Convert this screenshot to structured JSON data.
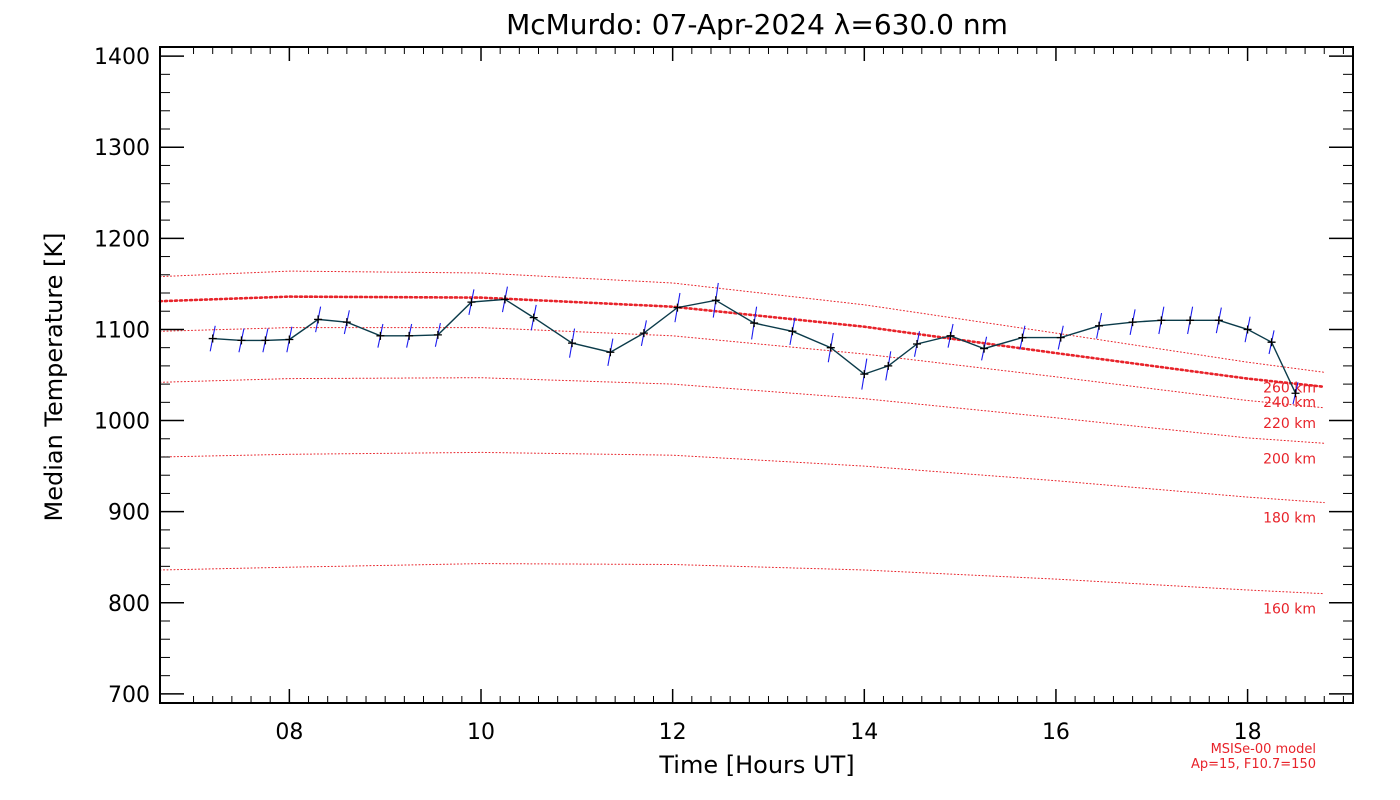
{
  "chart_data": {
    "type": "line",
    "title": "McMurdo: 07-Apr-2024 λ=630.0 nm",
    "xlabel": "Time [Hours UT]",
    "ylabel": "Median Temperature [K]",
    "xlim": [
      6.65,
      19.1
    ],
    "ylim": [
      690,
      1410
    ],
    "x_ticks": [
      "08",
      "10",
      "12",
      "14",
      "16",
      "18"
    ],
    "y_ticks": [
      "700",
      "800",
      "900",
      "1000",
      "1100",
      "1200",
      "1300",
      "1400"
    ],
    "grid": false,
    "colors": {
      "measurement_line": "#0b3b4a",
      "error_bars": "#1a1aee",
      "markers": "#000000",
      "model": "#e8232a"
    },
    "series": [
      {
        "marker": "plus",
        "error_bars": true,
        "points": [
          {
            "x": 7.2,
            "y": 1090,
            "err": 14
          },
          {
            "x": 7.5,
            "y": 1088,
            "err": 13
          },
          {
            "x": 7.75,
            "y": 1088,
            "err": 13
          },
          {
            "x": 8.0,
            "y": 1089,
            "err": 14
          },
          {
            "x": 8.3,
            "y": 1111,
            "err": 14
          },
          {
            "x": 8.6,
            "y": 1108,
            "err": 13
          },
          {
            "x": 8.95,
            "y": 1093,
            "err": 13
          },
          {
            "x": 9.25,
            "y": 1093,
            "err": 13
          },
          {
            "x": 9.55,
            "y": 1094,
            "err": 13
          },
          {
            "x": 9.9,
            "y": 1130,
            "err": 14
          },
          {
            "x": 10.25,
            "y": 1133,
            "err": 14
          },
          {
            "x": 10.55,
            "y": 1113,
            "err": 14
          },
          {
            "x": 10.95,
            "y": 1085,
            "err": 16
          },
          {
            "x": 11.35,
            "y": 1075,
            "err": 15
          },
          {
            "x": 11.7,
            "y": 1096,
            "err": 14
          },
          {
            "x": 12.05,
            "y": 1124,
            "err": 16
          },
          {
            "x": 12.45,
            "y": 1132,
            "err": 19
          },
          {
            "x": 12.85,
            "y": 1107,
            "err": 18
          },
          {
            "x": 13.25,
            "y": 1098,
            "err": 15
          },
          {
            "x": 13.65,
            "y": 1080,
            "err": 16
          },
          {
            "x": 14.0,
            "y": 1051,
            "err": 17
          },
          {
            "x": 14.25,
            "y": 1060,
            "err": 16
          },
          {
            "x": 14.55,
            "y": 1084,
            "err": 14
          },
          {
            "x": 14.9,
            "y": 1093,
            "err": 13
          },
          {
            "x": 15.25,
            "y": 1079,
            "err": 13
          },
          {
            "x": 15.65,
            "y": 1091,
            "err": 13
          },
          {
            "x": 16.05,
            "y": 1091,
            "err": 13
          },
          {
            "x": 16.45,
            "y": 1104,
            "err": 14
          },
          {
            "x": 16.8,
            "y": 1108,
            "err": 14
          },
          {
            "x": 17.1,
            "y": 1110,
            "err": 15
          },
          {
            "x": 17.4,
            "y": 1110,
            "err": 15
          },
          {
            "x": 17.7,
            "y": 1110,
            "err": 14
          },
          {
            "x": 18.0,
            "y": 1100,
            "err": 14
          },
          {
            "x": 18.25,
            "y": 1086,
            "err": 13
          },
          {
            "x": 18.5,
            "y": 1030,
            "err": 12
          }
        ]
      }
    ],
    "model_curves": [
      {
        "label": "160 km",
        "x": [
          6.65,
          8.0,
          10.0,
          12.0,
          14.0,
          16.0,
          18.0,
          18.8
        ],
        "y": [
          836,
          839,
          843,
          842,
          836,
          826,
          814,
          810
        ],
        "emphasis": false
      },
      {
        "label": "180 km",
        "x": [
          6.65,
          8.0,
          10.0,
          12.0,
          14.0,
          16.0,
          18.0,
          18.8
        ],
        "y": [
          960,
          963,
          965,
          962,
          950,
          934,
          916,
          910
        ],
        "emphasis": false
      },
      {
        "label": "200 km",
        "x": [
          6.65,
          8.0,
          10.0,
          12.0,
          14.0,
          16.0,
          18.0,
          18.8
        ],
        "y": [
          1042,
          1046,
          1047,
          1040,
          1024,
          1003,
          981,
          975
        ],
        "emphasis": false
      },
      {
        "label": "220 km",
        "x": [
          6.65,
          8.0,
          10.0,
          12.0,
          14.0,
          16.0,
          18.0,
          18.8
        ],
        "y": [
          1098,
          1102,
          1102,
          1093,
          1073,
          1048,
          1022,
          1014
        ],
        "emphasis": false
      },
      {
        "label": "240 km",
        "x": [
          6.65,
          8.0,
          10.0,
          12.0,
          14.0,
          16.0,
          18.0,
          18.8
        ],
        "y": [
          1131,
          1136,
          1135,
          1125,
          1103,
          1074,
          1046,
          1037
        ],
        "emphasis": true
      },
      {
        "label": "260 km",
        "x": [
          6.65,
          8.0,
          10.0,
          12.0,
          14.0,
          16.0,
          18.0,
          18.8
        ],
        "y": [
          1158,
          1164,
          1162,
          1151,
          1127,
          1096,
          1064,
          1053
        ],
        "emphasis": false
      }
    ],
    "annotations": [
      "MSISe-00 model",
      "Ap=15, F10.7=150"
    ]
  }
}
